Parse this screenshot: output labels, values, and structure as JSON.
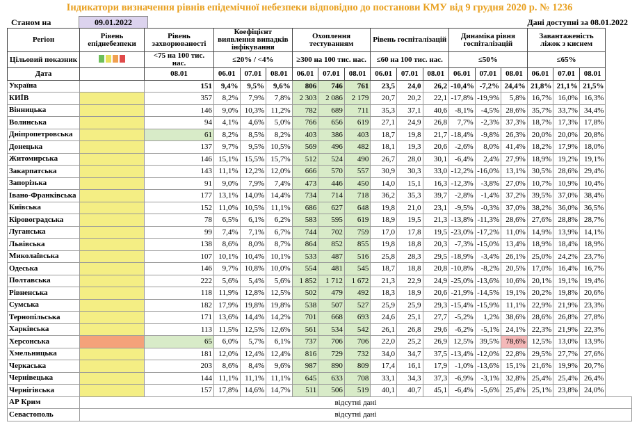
{
  "header": {
    "title": "Індикатори визначення рівнів епідемічної небезпеки відповідно до постанови КМУ від 9 грудня 2020 р. № 1236",
    "status_label": "Станом на",
    "status_date": "09.01.2022",
    "data_available": "Дані доступні за 08.01.2022"
  },
  "table": {
    "columns": [
      "Регіон",
      "Рівень епіднебезпеки",
      "Рівень захворюваності",
      "Коефіцієнт виявлення випадків інфікування",
      "Охоплення тестуванням",
      "Рівень госпіталізацій",
      "Динаміка рівня госпіталізацій",
      "Завантаженість ліжок з киснем"
    ],
    "target_label": "Цільовий показник",
    "targets": [
      "<75 на 100 тис. нас.",
      "≤20% / <4%",
      "≥300 на 100 тис. нас.",
      "≤60 на 100 тис. нас.",
      "≤50%",
      "≤65%"
    ],
    "date_label": "Дата",
    "dates": [
      "08.01",
      "06.01",
      "07.01",
      "08.01",
      "06.01",
      "07.01",
      "08.01",
      "06.01",
      "07.01",
      "08.01",
      "06.01",
      "07.01",
      "08.01",
      "06.01",
      "07.01",
      "08.01"
    ],
    "rows": [
      {
        "region": "Україна",
        "level_color": "#ffffff",
        "cells": [
          "151",
          "9,4%",
          "9,5%",
          "9,6%",
          "806",
          "746",
          "761",
          "23,5",
          "24,0",
          "26,2",
          "-10,4%",
          "-7,2%",
          "24,4%",
          "21,8%",
          "21,1%",
          "21,5%"
        ]
      },
      {
        "region": "КИЇВ",
        "level_color": "#f4ee84",
        "cells": [
          "357",
          "8,2%",
          "7,9%",
          "7,8%",
          "2 303",
          "2 086",
          "2 179",
          "20,7",
          "20,2",
          "22,1",
          "-17,8%",
          "-19,9%",
          "5,8%",
          "16,7%",
          "16,0%",
          "16,3%"
        ]
      },
      {
        "region": "Вінницька",
        "level_color": "#f4ee84",
        "cells": [
          "146",
          "9,0%",
          "10,3%",
          "11,2%",
          "782",
          "689",
          "711",
          "35,3",
          "37,1",
          "40,6",
          "-8,1%",
          "-4,5%",
          "28,6%",
          "35,7%",
          "33,7%",
          "34,4%"
        ]
      },
      {
        "region": "Волинська",
        "level_color": "#f4ee84",
        "cells": [
          "94",
          "4,1%",
          "4,6%",
          "5,0%",
          "766",
          "656",
          "619",
          "27,1",
          "24,9",
          "26,8",
          "7,7%",
          "-2,3%",
          "37,3%",
          "18,7%",
          "17,3%",
          "17,8%"
        ]
      },
      {
        "region": "Дніпропетровська",
        "level_color": "#f4ee84",
        "incidence_color": "#d8ebc8",
        "cells": [
          "61",
          "8,2%",
          "8,5%",
          "8,2%",
          "403",
          "386",
          "403",
          "18,7",
          "19,8",
          "21,7",
          "-18,4%",
          "-9,8%",
          "26,3%",
          "20,0%",
          "20,0%",
          "20,8%"
        ]
      },
      {
        "region": "Донецька",
        "level_color": "#f4ee84",
        "cells": [
          "137",
          "9,7%",
          "9,5%",
          "10,5%",
          "569",
          "496",
          "482",
          "18,1",
          "19,3",
          "20,6",
          "-2,6%",
          "8,0%",
          "41,4%",
          "18,2%",
          "17,9%",
          "18,0%"
        ]
      },
      {
        "region": "Житомирська",
        "level_color": "#f4ee84",
        "cells": [
          "146",
          "15,1%",
          "15,5%",
          "15,7%",
          "512",
          "524",
          "490",
          "26,7",
          "28,0",
          "30,1",
          "-6,4%",
          "2,4%",
          "27,9%",
          "18,9%",
          "19,2%",
          "19,1%"
        ]
      },
      {
        "region": "Закарпатська",
        "level_color": "#f4ee84",
        "cells": [
          "143",
          "11,1%",
          "12,2%",
          "12,0%",
          "666",
          "570",
          "557",
          "30,9",
          "30,3",
          "33,0",
          "-12,2%",
          "-16,0%",
          "13,1%",
          "30,5%",
          "28,6%",
          "29,4%"
        ]
      },
      {
        "region": "Запорізька",
        "level_color": "#f4ee84",
        "cells": [
          "91",
          "9,0%",
          "7,9%",
          "7,4%",
          "473",
          "446",
          "450",
          "14,0",
          "15,1",
          "16,3",
          "-12,3%",
          "-3,8%",
          "27,0%",
          "10,7%",
          "10,9%",
          "10,4%"
        ]
      },
      {
        "region": "Івано-Франківська",
        "level_color": "#f4ee84",
        "cells": [
          "177",
          "13,1%",
          "14,0%",
          "14,4%",
          "734",
          "714",
          "718",
          "36,2",
          "35,3",
          "39,7",
          "-2,8%",
          "-1,4%",
          "37,2%",
          "39,5%",
          "37,0%",
          "38,4%"
        ]
      },
      {
        "region": "Київська",
        "level_color": "#f4ee84",
        "cells": [
          "152",
          "11,0%",
          "10,5%",
          "11,1%",
          "686",
          "627",
          "648",
          "19,8",
          "21,0",
          "23,1",
          "-9,5%",
          "-0,3%",
          "37,0%",
          "38,2%",
          "36,0%",
          "36,5%"
        ]
      },
      {
        "region": "Кіровоградська",
        "level_color": "#f4ee84",
        "cells": [
          "78",
          "6,5%",
          "6,1%",
          "6,2%",
          "583",
          "595",
          "619",
          "18,9",
          "19,5",
          "21,3",
          "-13,8%",
          "-11,3%",
          "28,6%",
          "27,6%",
          "28,8%",
          "28,7%"
        ]
      },
      {
        "region": "Луганська",
        "level_color": "#f4ee84",
        "cells": [
          "99",
          "7,4%",
          "7,1%",
          "6,7%",
          "744",
          "702",
          "759",
          "17,0",
          "17,8",
          "19,5",
          "-23,0%",
          "-17,2%",
          "11,0%",
          "14,9%",
          "13,9%",
          "14,1%"
        ]
      },
      {
        "region": "Львівська",
        "level_color": "#f4ee84",
        "cells": [
          "138",
          "8,6%",
          "8,0%",
          "8,7%",
          "864",
          "852",
          "855",
          "19,8",
          "18,8",
          "20,3",
          "-7,3%",
          "-15,0%",
          "13,4%",
          "18,9%",
          "18,4%",
          "18,9%"
        ]
      },
      {
        "region": "Миколаївська",
        "level_color": "#f4ee84",
        "cells": [
          "107",
          "10,1%",
          "10,4%",
          "10,1%",
          "533",
          "487",
          "516",
          "25,8",
          "28,3",
          "29,5",
          "-18,9%",
          "-3,4%",
          "26,1%",
          "25,0%",
          "24,2%",
          "23,7%"
        ]
      },
      {
        "region": "Одеська",
        "level_color": "#f4ee84",
        "cells": [
          "146",
          "9,7%",
          "10,8%",
          "10,0%",
          "554",
          "481",
          "545",
          "18,7",
          "18,8",
          "20,8",
          "-10,8%",
          "-8,2%",
          "20,5%",
          "17,0%",
          "16,4%",
          "16,7%"
        ]
      },
      {
        "region": "Полтавська",
        "level_color": "#f4ee84",
        "cells": [
          "222",
          "5,6%",
          "5,4%",
          "5,6%",
          "1 852",
          "1 712",
          "1 672",
          "21,3",
          "22,9",
          "24,9",
          "-25,0%",
          "-13,6%",
          "10,6%",
          "20,1%",
          "19,1%",
          "19,4%"
        ]
      },
      {
        "region": "Рівненська",
        "level_color": "#f4ee84",
        "cells": [
          "118",
          "11,9%",
          "12,8%",
          "12,5%",
          "502",
          "479",
          "492",
          "18,3",
          "18,9",
          "20,6",
          "-21,9%",
          "-14,5%",
          "19,1%",
          "20,2%",
          "19,8%",
          "20,6%"
        ]
      },
      {
        "region": "Сумська",
        "level_color": "#f4ee84",
        "cells": [
          "182",
          "17,9%",
          "19,8%",
          "19,8%",
          "538",
          "507",
          "527",
          "25,9",
          "25,9",
          "29,3",
          "-15,4%",
          "-15,9%",
          "11,1%",
          "22,9%",
          "21,9%",
          "23,3%"
        ]
      },
      {
        "region": "Тернопільська",
        "level_color": "#f4ee84",
        "cells": [
          "171",
          "13,6%",
          "14,4%",
          "14,2%",
          "701",
          "668",
          "693",
          "24,6",
          "25,1",
          "27,7",
          "-5,2%",
          "1,2%",
          "38,6%",
          "28,6%",
          "26,8%",
          "27,8%"
        ]
      },
      {
        "region": "Харківська",
        "level_color": "#f4ee84",
        "cells": [
          "113",
          "11,5%",
          "12,5%",
          "12,6%",
          "561",
          "534",
          "542",
          "26,1",
          "26,8",
          "29,6",
          "-6,2%",
          "-5,1%",
          "24,1%",
          "22,3%",
          "21,9%",
          "22,3%"
        ]
      },
      {
        "region": "Херсонська",
        "level_color": "#f4a27a",
        "incidence_color": "#d8ebc8",
        "dynamics_color": "#f4b8b8",
        "cells": [
          "65",
          "6,0%",
          "5,7%",
          "6,1%",
          "737",
          "706",
          "706",
          "22,0",
          "25,2",
          "26,9",
          "12,5%",
          "39,5%",
          "78,6%",
          "12,5%",
          "13,0%",
          "13,9%"
        ]
      },
      {
        "region": "Хмельницька",
        "level_color": "#f4ee84",
        "cells": [
          "181",
          "12,0%",
          "12,4%",
          "12,4%",
          "816",
          "729",
          "732",
          "34,0",
          "34,7",
          "37,5",
          "-13,4%",
          "-12,0%",
          "22,8%",
          "29,5%",
          "27,7%",
          "27,6%"
        ]
      },
      {
        "region": "Черкаська",
        "level_color": "#f4ee84",
        "cells": [
          "203",
          "8,6%",
          "8,4%",
          "9,6%",
          "987",
          "890",
          "809",
          "17,4",
          "16,1",
          "17,9",
          "-1,0%",
          "-13,6%",
          "15,1%",
          "21,6%",
          "19,9%",
          "20,7%"
        ]
      },
      {
        "region": "Чернівецька",
        "level_color": "#f4ee84",
        "cells": [
          "144",
          "11,1%",
          "11,1%",
          "11,1%",
          "645",
          "633",
          "708",
          "33,1",
          "34,3",
          "37,3",
          "-6,9%",
          "-3,1%",
          "32,8%",
          "25,4%",
          "25,4%",
          "26,4%"
        ]
      },
      {
        "region": "Чернігівська",
        "level_color": "#f4ee84",
        "cells": [
          "157",
          "17,8%",
          "14,6%",
          "14,7%",
          "511",
          "506",
          "519",
          "40,1",
          "40,7",
          "45,1",
          "-6,4%",
          "-5,6%",
          "25,4%",
          "25,1%",
          "23,8%",
          "24,0%"
        ]
      },
      {
        "region": "АР Крим",
        "note": "відсутні дані"
      },
      {
        "region": "Севастополь",
        "note": "відсутні дані"
      }
    ]
  }
}
